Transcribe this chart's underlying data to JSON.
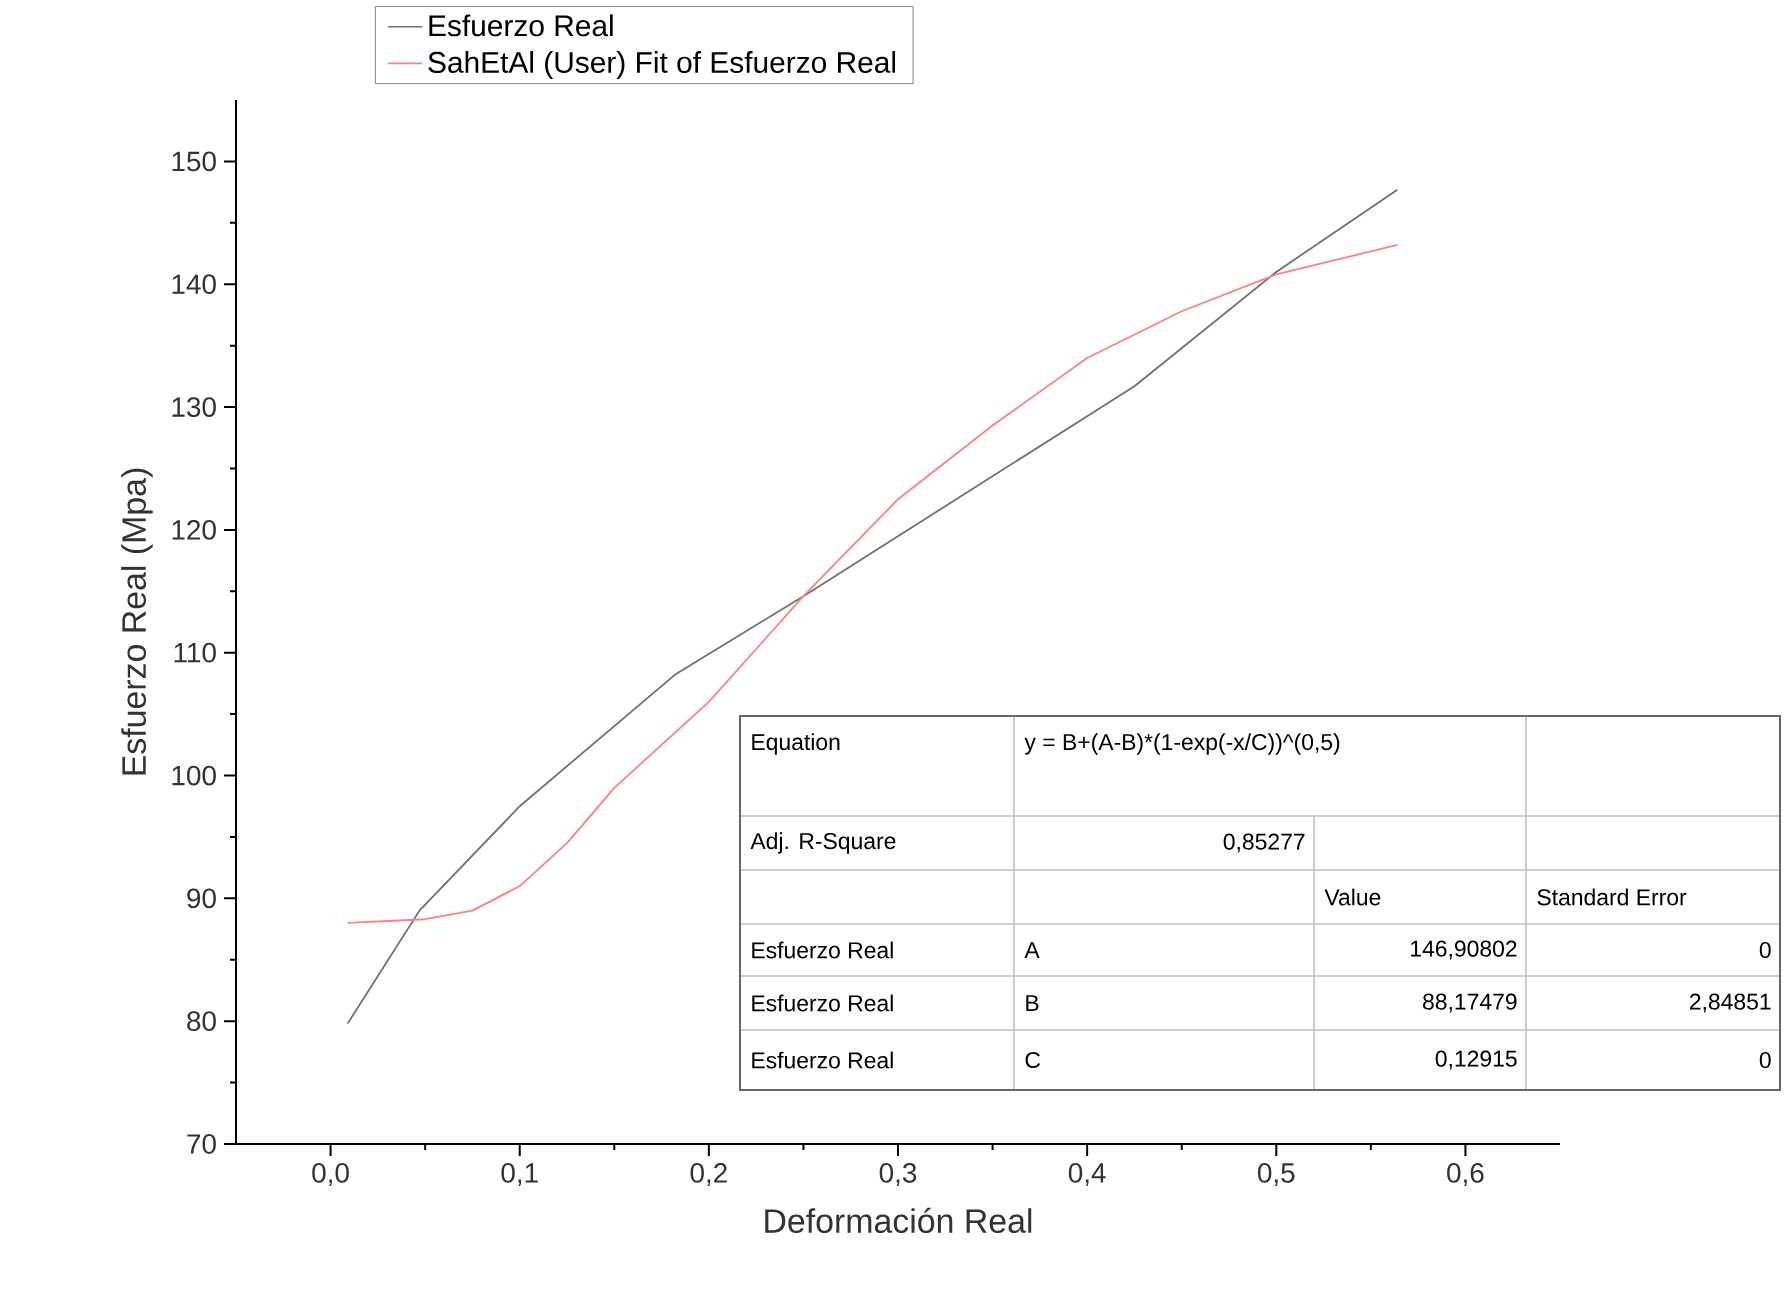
{
  "chart_data": {
    "type": "line",
    "xlabel": "Deformación Real",
    "ylabel": "Esfuerzo Real (Mpa)",
    "xlim": [
      -0.05,
      0.65
    ],
    "ylim": [
      70,
      155
    ],
    "xticks": [
      {
        "value": 0,
        "label": "0,0"
      },
      {
        "value": 0.1,
        "label": "0,1"
      },
      {
        "value": 0.2,
        "label": "0,2"
      },
      {
        "value": 0.3,
        "label": "0,3"
      },
      {
        "value": 0.4,
        "label": "0,4"
      },
      {
        "value": 0.5,
        "label": "0,5"
      },
      {
        "value": 0.6,
        "label": "0,6"
      }
    ],
    "yticks": [
      70,
      80,
      90,
      100,
      110,
      120,
      130,
      140,
      150
    ],
    "legend": "top",
    "series": [
      {
        "name": "Esfuerzo Real",
        "color": "#707070",
        "x": [
          0.009,
          0.047,
          0.1,
          0.182,
          0.25,
          0.425,
          0.5,
          0.564
        ],
        "values": [
          79.8,
          89,
          97.5,
          108.2,
          114.6,
          131.7,
          141,
          147.7
        ]
      },
      {
        "name": "SahEtAl (User) Fit of Esfuerzo Real",
        "color": "#ff8080",
        "x": [
          0.009,
          0.05,
          0.075,
          0.1,
          0.125,
          0.15,
          0.2,
          0.25,
          0.3,
          0.35,
          0.4,
          0.45,
          0.5,
          0.564
        ],
        "values": [
          88,
          88.3,
          89,
          91,
          94.5,
          99,
          106,
          114.6,
          122.5,
          128.5,
          134,
          137.8,
          140.8,
          143.2
        ]
      }
    ],
    "annotations": [
      "Equation",
      "y = B+(A-B)*(1-exp(-x/C))^(0,5)",
      "Adj. R-Square",
      "0,85277",
      "Value",
      "Standard Error",
      "Esfuerzo Real",
      "A",
      "146,90802",
      "0",
      "Esfuerzo Real",
      "B",
      "88,17479",
      "2,84851",
      "Esfuerzo Real",
      "C",
      "0,12915",
      "0"
    ]
  }
}
